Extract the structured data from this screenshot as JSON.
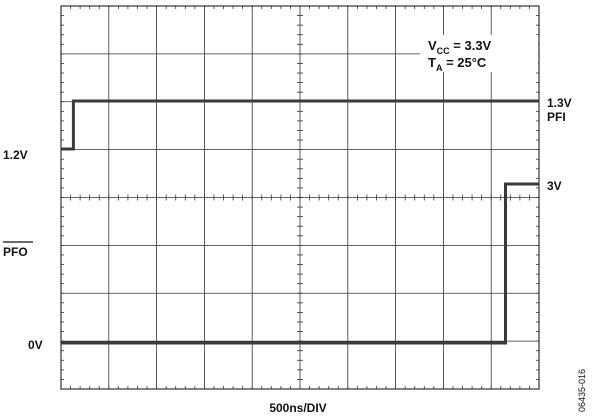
{
  "chart_data": {
    "type": "line",
    "title": "",
    "xlabel": "500ns/DIV",
    "ylabel": "",
    "x_unit": "ns",
    "x_per_division": 500,
    "x_divisions": 10,
    "y_divisions": 8,
    "xlim": [
      0,
      5000
    ],
    "grid": true,
    "conditions": {
      "vcc": {
        "main": "V",
        "sub": "CC",
        "rest": " = 3.3V"
      },
      "ta": {
        "main": "T",
        "sub": "A",
        "rest": " = 25°C"
      }
    },
    "left_labels": {
      "pfi_low": "1.2V",
      "pfo_name": "PFO",
      "pfo_low": "0V"
    },
    "right_labels": {
      "pfi_high": "1.3V",
      "pfi_name": "PFI",
      "pfo_high": "3V"
    },
    "series": [
      {
        "name": "PFI",
        "points": [
          {
            "t": 0,
            "v": 1.2
          },
          {
            "t": 130,
            "v": 1.2
          },
          {
            "t": 130,
            "v": 1.3
          },
          {
            "t": 5000,
            "v": 1.3
          }
        ]
      },
      {
        "name": "PFO",
        "points": [
          {
            "t": 0,
            "v": 0
          },
          {
            "t": 4650,
            "v": 0
          },
          {
            "t": 4650,
            "v": 3
          },
          {
            "t": 5000,
            "v": 3
          }
        ]
      }
    ]
  },
  "figure_id": "06435-016",
  "colors": {
    "trace": "#3a3a3a",
    "grid": "#333333",
    "text": "#111111"
  }
}
